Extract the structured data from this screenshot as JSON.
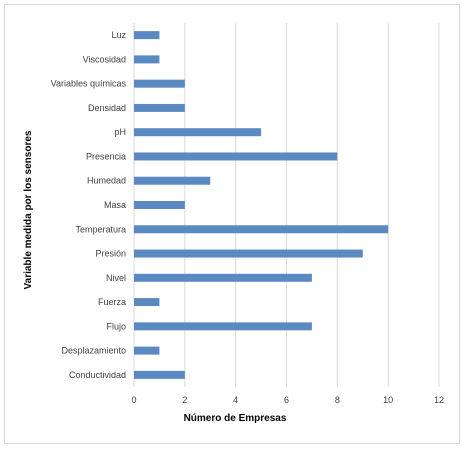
{
  "chart_data": {
    "type": "bar",
    "orientation": "horizontal",
    "title": "",
    "xlabel": "Número de Empresas",
    "ylabel": "Variable medida por los sensores",
    "categories": [
      "Luz",
      "Viscosidad",
      "Variables químicas",
      "Densidad",
      "pH",
      "Presencia",
      "Humedad",
      "Masa",
      "Temperatura",
      "Presión",
      "Nivel",
      "Fuerza",
      "Flujo",
      "Desplazamiento",
      "Conductividad"
    ],
    "values": [
      1,
      1,
      2,
      2,
      5,
      8,
      3,
      2,
      10,
      9,
      7,
      1,
      7,
      1,
      2
    ],
    "xlim": [
      0,
      12
    ],
    "xticks": [
      0,
      2,
      4,
      6,
      8,
      10,
      12
    ],
    "grid": "vertical",
    "legend": "none",
    "bar_color": "#5b8ac3"
  }
}
